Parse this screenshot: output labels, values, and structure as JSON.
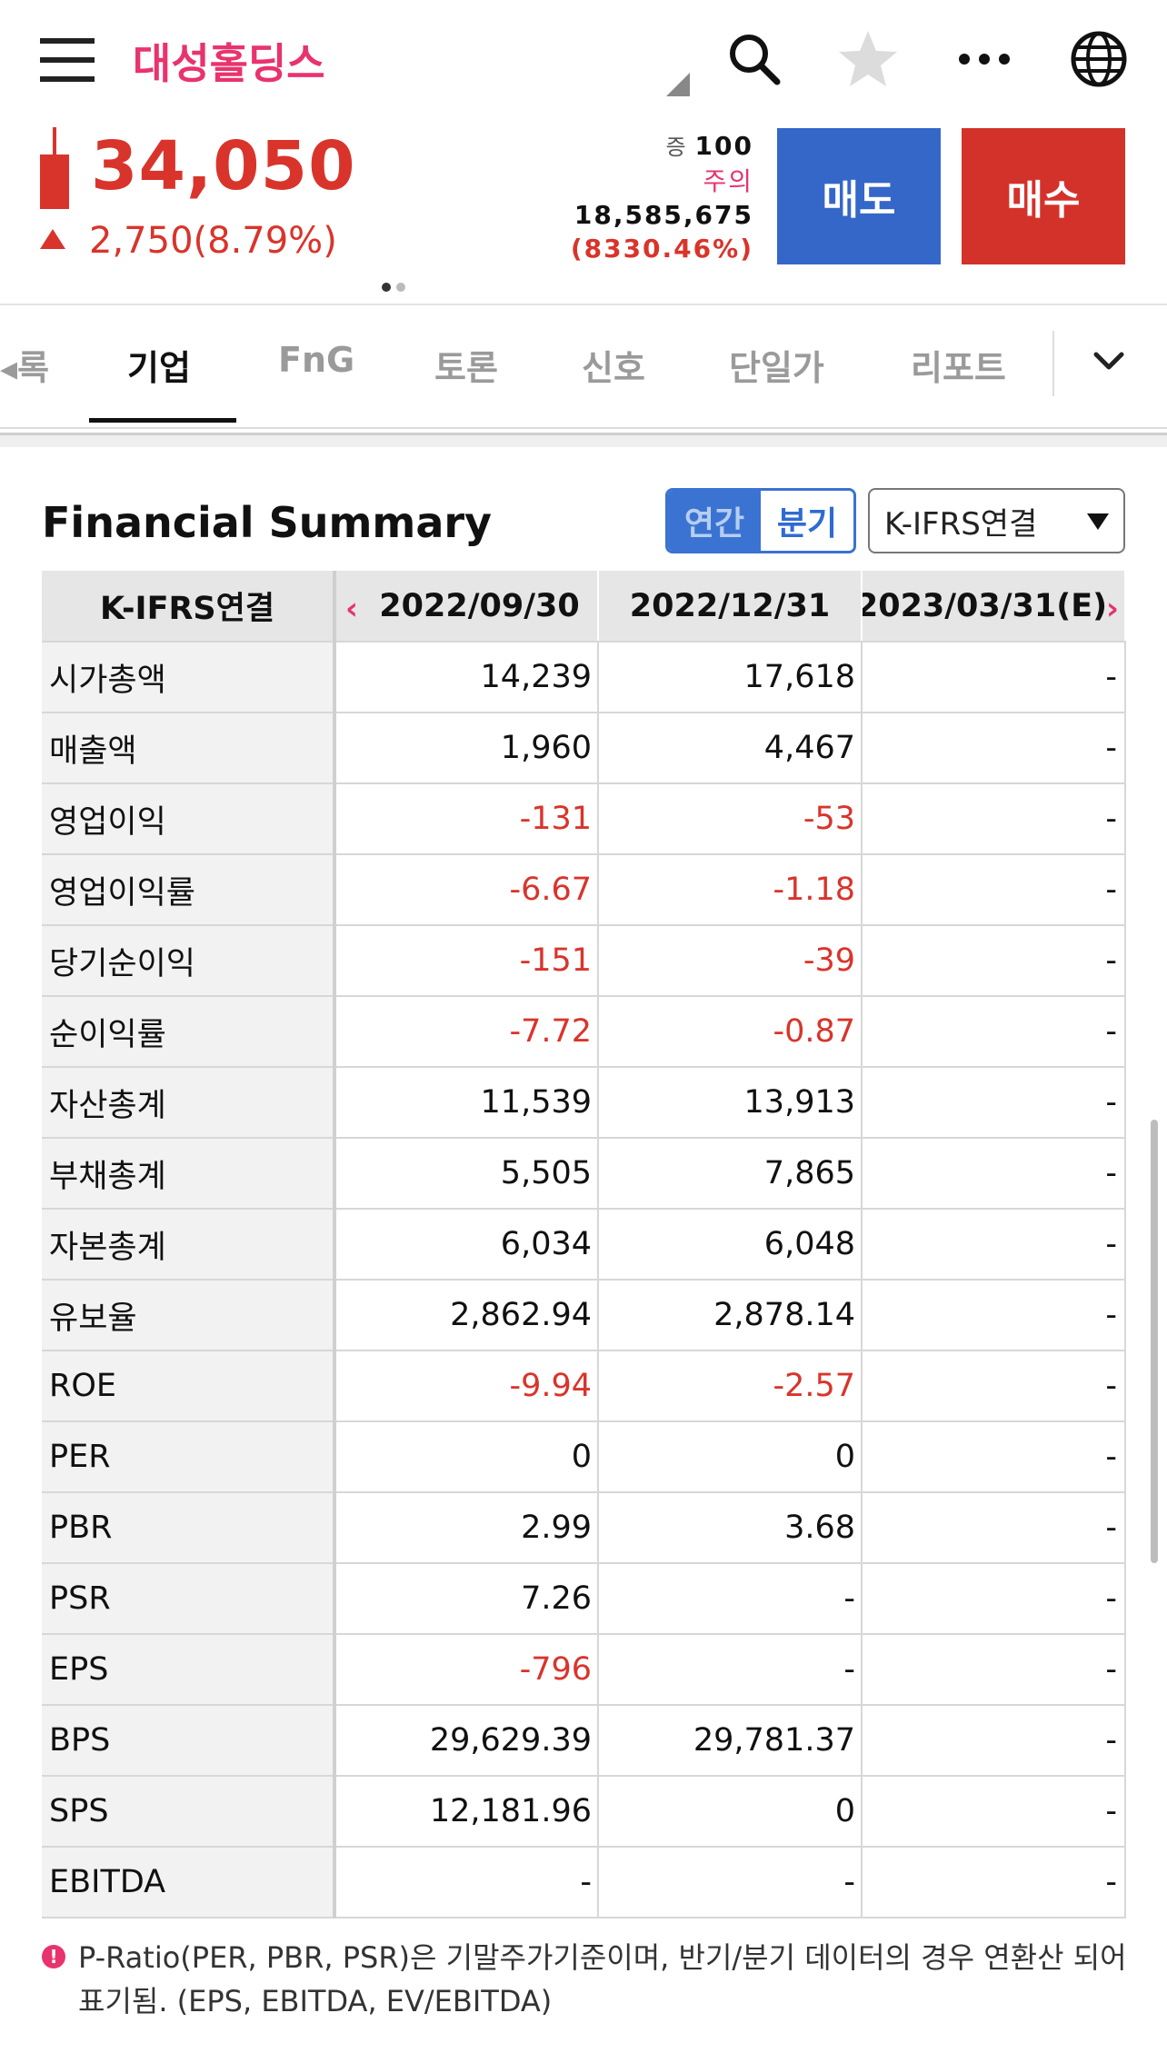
{
  "header": {
    "title": "대성홀딩스",
    "icons": [
      "menu-icon",
      "search-icon",
      "star-icon",
      "more-icon",
      "globe-icon"
    ]
  },
  "quote": {
    "price": "34,050",
    "change": "2,750(8.79%)",
    "margin_label": "증",
    "margin_value": "100",
    "warning": "주의",
    "volume": "18,585,675",
    "volume_ratio": "(8330.46%)",
    "sell_label": "매도",
    "buy_label": "매수"
  },
  "tabs": [
    "◂록",
    "기업",
    "FnG",
    "토론",
    "신호",
    "단일가",
    "리포트"
  ],
  "active_tab": "기업",
  "summary": {
    "title": "Financial Summary",
    "toggle_annual": "연간",
    "toggle_quarter": "분기",
    "basis_select": "K-IFRS연결"
  },
  "table": {
    "header_label": "K-IFRS연결",
    "periods": [
      "2022/09/30",
      "2022/12/31",
      "2023/03/31(E)"
    ],
    "rows": [
      {
        "label": "시가총액",
        "values": [
          "14,239",
          "17,618",
          "-"
        ]
      },
      {
        "label": "매출액",
        "values": [
          "1,960",
          "4,467",
          "-"
        ]
      },
      {
        "label": "영업이익",
        "values": [
          "-131",
          "-53",
          "-"
        ]
      },
      {
        "label": "영업이익률",
        "values": [
          "-6.67",
          "-1.18",
          "-"
        ]
      },
      {
        "label": "당기순이익",
        "values": [
          "-151",
          "-39",
          "-"
        ]
      },
      {
        "label": "순이익률",
        "values": [
          "-7.72",
          "-0.87",
          "-"
        ]
      },
      {
        "label": "자산총계",
        "values": [
          "11,539",
          "13,913",
          "-"
        ]
      },
      {
        "label": "부채총계",
        "values": [
          "5,505",
          "7,865",
          "-"
        ]
      },
      {
        "label": "자본총계",
        "values": [
          "6,034",
          "6,048",
          "-"
        ]
      },
      {
        "label": "유보율",
        "values": [
          "2,862.94",
          "2,878.14",
          "-"
        ]
      },
      {
        "label": "ROE",
        "values": [
          "-9.94",
          "-2.57",
          "-"
        ]
      },
      {
        "label": "PER",
        "values": [
          "0",
          "0",
          "-"
        ]
      },
      {
        "label": "PBR",
        "values": [
          "2.99",
          "3.68",
          "-"
        ]
      },
      {
        "label": "PSR",
        "values": [
          "7.26",
          "-",
          "-"
        ]
      },
      {
        "label": "EPS",
        "values": [
          "-796",
          "-",
          "-"
        ]
      },
      {
        "label": "BPS",
        "values": [
          "29,629.39",
          "29,781.37",
          "-"
        ]
      },
      {
        "label": "SPS",
        "values": [
          "12,181.96",
          "0",
          "-"
        ]
      },
      {
        "label": "EBITDA",
        "values": [
          "-",
          "-",
          "-"
        ]
      }
    ]
  },
  "notice": "P-Ratio(PER, PBR, PSR)은 기말주가기준이며, 반기/분기 데이터의 경우 연환산 되어 표기됨. (EPS, EBITDA, EV/EBITDA)",
  "colors": {
    "brand_pink": "#e8336e",
    "up_red": "#d9342b",
    "sell_blue": "#3567c9",
    "buy_red": "#d3322a"
  }
}
